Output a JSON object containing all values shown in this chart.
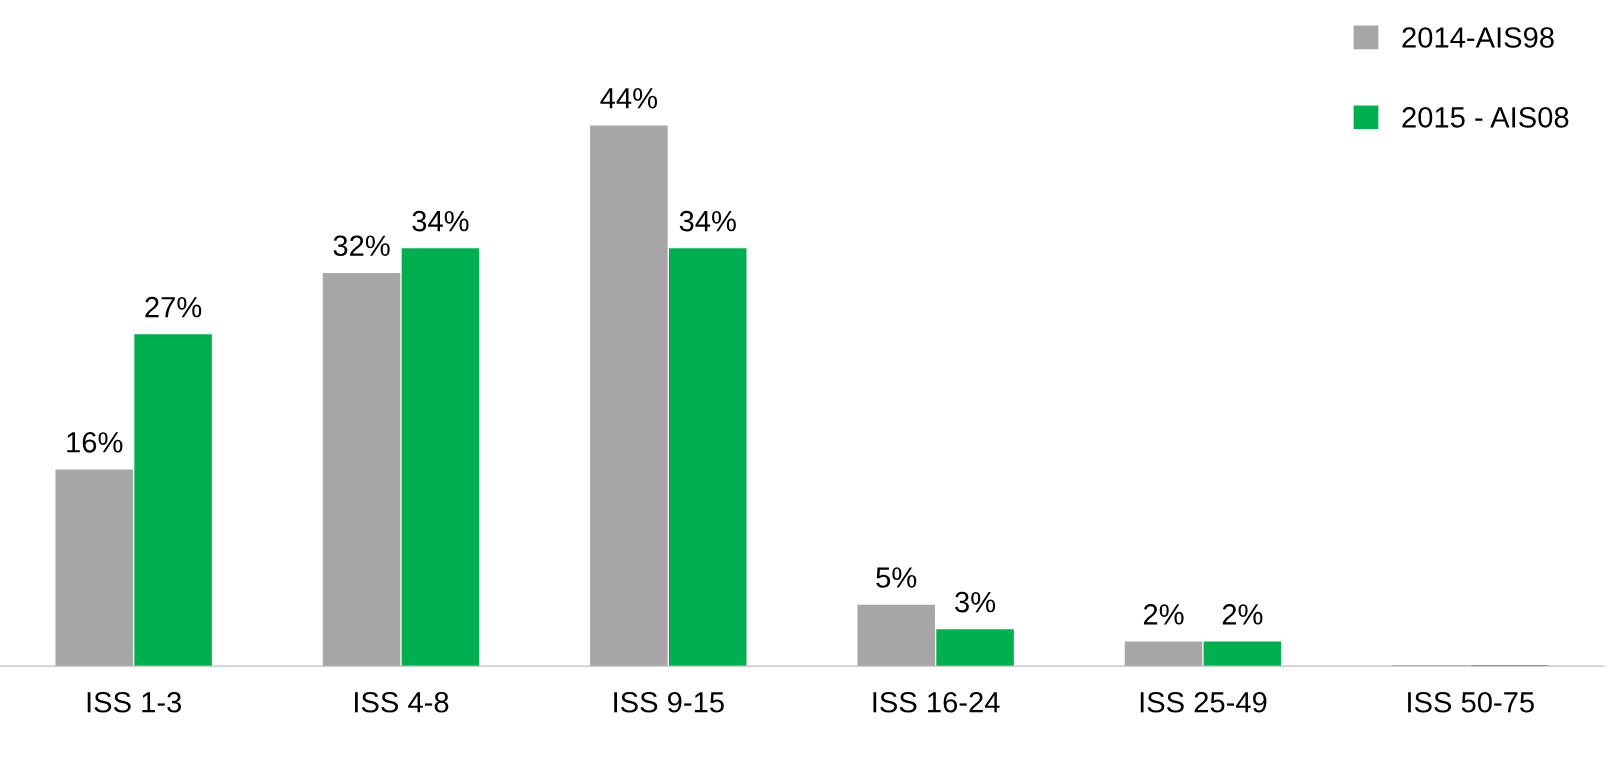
{
  "chart_data": {
    "type": "bar",
    "categories": [
      "ISS 1-3",
      "ISS 4-8",
      "ISS 9-15",
      "ISS 16-24",
      "ISS 25-49",
      "ISS 50-75"
    ],
    "series": [
      {
        "name": "2014-AIS98",
        "color": "#a6a6a6",
        "values": [
          16,
          32,
          44,
          5,
          2,
          0.1
        ],
        "value_labels": [
          "16%",
          "32%",
          "44%",
          "5%",
          "2%",
          null
        ]
      },
      {
        "name": "2015 - AIS08",
        "color": "#00b050",
        "values": [
          27,
          34,
          34,
          3,
          2,
          0.1
        ],
        "value_labels": [
          "27%",
          "34%",
          "34%",
          "3%",
          "2%",
          null
        ]
      }
    ],
    "legend": "top right",
    "grid": false,
    "tick_labels": "x"
  }
}
